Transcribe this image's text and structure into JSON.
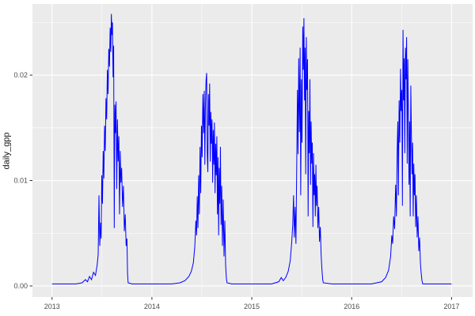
{
  "figure": {
    "background": "#ffffff",
    "panel_bg": "#ebebeb",
    "grid_color": "#ffffff",
    "tick_mark_color": "#333333",
    "tick_label_color": "#4d4d4d",
    "axis_title_color": "#141414"
  },
  "chart_data": {
    "type": "line",
    "title": "",
    "xlabel": "",
    "ylabel": "daily_gpp",
    "legend": "none",
    "grid": true,
    "x_domain": [
      2012.804,
      2017.211
    ],
    "y_domain": [
      -0.00105,
      0.02675
    ],
    "x_ticks": [
      2013,
      2014,
      2015,
      2016,
      2017
    ],
    "x_tick_labels": [
      "2013",
      "2014",
      "2015",
      "2016",
      "2017"
    ],
    "x_minor_ticks": [
      2013.5,
      2014.5,
      2015.5,
      2016.5
    ],
    "y_ticks": [
      0.0,
      0.01,
      0.02
    ],
    "y_tick_labels": [
      "0.00",
      "0.01",
      "0.02"
    ],
    "y_minor_ticks": [
      0.005,
      0.015,
      0.025
    ],
    "series": [
      {
        "name": "daily_gpp",
        "color": "#0000ff",
        "points": [
          [
            2013.0,
            0.0002
          ],
          [
            2013.08,
            0.0002
          ],
          [
            2013.16,
            0.0002
          ],
          [
            2013.24,
            0.0002
          ],
          [
            2013.3,
            0.0003
          ],
          [
            2013.335,
            0.0006
          ],
          [
            2013.355,
            0.0004
          ],
          [
            2013.375,
            0.0009
          ],
          [
            2013.395,
            0.0006
          ],
          [
            2013.415,
            0.0013
          ],
          [
            2013.435,
            0.001
          ],
          [
            2013.452,
            0.002
          ],
          [
            2013.462,
            0.003
          ],
          [
            2013.47,
            0.0086
          ],
          [
            2013.478,
            0.0038
          ],
          [
            2013.486,
            0.006
          ],
          [
            2013.492,
            0.0045
          ],
          [
            2013.498,
            0.0105
          ],
          [
            2013.505,
            0.0078
          ],
          [
            2013.512,
            0.0128
          ],
          [
            2013.519,
            0.0102
          ],
          [
            2013.526,
            0.0152
          ],
          [
            2013.533,
            0.0128
          ],
          [
            2013.54,
            0.0178
          ],
          [
            2013.547,
            0.0158
          ],
          [
            2013.554,
            0.0205
          ],
          [
            2013.561,
            0.0182
          ],
          [
            2013.568,
            0.0225
          ],
          [
            2013.575,
            0.0208
          ],
          [
            2013.582,
            0.0245
          ],
          [
            2013.588,
            0.0222
          ],
          [
            2013.594,
            0.0258
          ],
          [
            2013.6,
            0.0238
          ],
          [
            2013.605,
            0.025
          ],
          [
            2013.611,
            0.0198
          ],
          [
            2013.617,
            0.0228
          ],
          [
            2013.623,
            0.0055
          ],
          [
            2013.629,
            0.0172
          ],
          [
            2013.635,
            0.0145
          ],
          [
            2013.641,
            0.0175
          ],
          [
            2013.648,
            0.0092
          ],
          [
            2013.655,
            0.0158
          ],
          [
            2013.662,
            0.0118
          ],
          [
            2013.669,
            0.0142
          ],
          [
            2013.676,
            0.0068
          ],
          [
            2013.683,
            0.0128
          ],
          [
            2013.69,
            0.0098
          ],
          [
            2013.697,
            0.0112
          ],
          [
            2013.706,
            0.0075
          ],
          [
            2013.715,
            0.0095
          ],
          [
            2013.724,
            0.0052
          ],
          [
            2013.733,
            0.0068
          ],
          [
            2013.742,
            0.0038
          ],
          [
            2013.75,
            0.0045
          ],
          [
            2013.756,
            0.0012
          ],
          [
            2013.762,
            0.0003
          ],
          [
            2013.8,
            0.0002
          ],
          [
            2013.9,
            0.0002
          ],
          [
            2014.0,
            0.0002
          ],
          [
            2014.1,
            0.0002
          ],
          [
            2014.2,
            0.0002
          ],
          [
            2014.28,
            0.0003
          ],
          [
            2014.33,
            0.0005
          ],
          [
            2014.37,
            0.0009
          ],
          [
            2014.395,
            0.0014
          ],
          [
            2014.415,
            0.0022
          ],
          [
            2014.43,
            0.0038
          ],
          [
            2014.44,
            0.0062
          ],
          [
            2014.447,
            0.0048
          ],
          [
            2014.454,
            0.0085
          ],
          [
            2014.461,
            0.0055
          ],
          [
            2014.468,
            0.0105
          ],
          [
            2014.475,
            0.0068
          ],
          [
            2014.482,
            0.0132
          ],
          [
            2014.489,
            0.0088
          ],
          [
            2014.496,
            0.0152
          ],
          [
            2014.503,
            0.0122
          ],
          [
            2014.51,
            0.0182
          ],
          [
            2014.517,
            0.0145
          ],
          [
            2014.524,
            0.0185
          ],
          [
            2014.53,
            0.0115
          ],
          [
            2014.536,
            0.0172
          ],
          [
            2014.542,
            0.0195
          ],
          [
            2014.548,
            0.0202
          ],
          [
            2014.554,
            0.0125
          ],
          [
            2014.56,
            0.0108
          ],
          [
            2014.566,
            0.0182
          ],
          [
            2014.572,
            0.0152
          ],
          [
            2014.578,
            0.0192
          ],
          [
            2014.584,
            0.0118
          ],
          [
            2014.59,
            0.0165
          ],
          [
            2014.596,
            0.0135
          ],
          [
            2014.602,
            0.0158
          ],
          [
            2014.608,
            0.0098
          ],
          [
            2014.614,
            0.0148
          ],
          [
            2014.62,
            0.0115
          ],
          [
            2014.626,
            0.0155
          ],
          [
            2014.632,
            0.0088
          ],
          [
            2014.638,
            0.0135
          ],
          [
            2014.644,
            0.0105
          ],
          [
            2014.65,
            0.0142
          ],
          [
            2014.656,
            0.0068
          ],
          [
            2014.662,
            0.0122
          ],
          [
            2014.668,
            0.0048
          ],
          [
            2014.674,
            0.0112
          ],
          [
            2014.68,
            0.0078
          ],
          [
            2014.686,
            0.0132
          ],
          [
            2014.692,
            0.0058
          ],
          [
            2014.699,
            0.0095
          ],
          [
            2014.706,
            0.0038
          ],
          [
            2014.714,
            0.0082
          ],
          [
            2014.722,
            0.0028
          ],
          [
            2014.73,
            0.0062
          ],
          [
            2014.738,
            0.002
          ],
          [
            2014.745,
            0.0008
          ],
          [
            2014.752,
            0.0003
          ],
          [
            2014.8,
            0.0002
          ],
          [
            2014.9,
            0.0002
          ],
          [
            2015.0,
            0.0002
          ],
          [
            2015.1,
            0.0002
          ],
          [
            2015.2,
            0.0002
          ],
          [
            2015.27,
            0.0004
          ],
          [
            2015.295,
            0.0008
          ],
          [
            2015.315,
            0.0005
          ],
          [
            2015.34,
            0.0008
          ],
          [
            2015.365,
            0.0014
          ],
          [
            2015.385,
            0.0024
          ],
          [
            2015.4,
            0.0042
          ],
          [
            2015.41,
            0.0058
          ],
          [
            2015.418,
            0.0086
          ],
          [
            2015.426,
            0.0046
          ],
          [
            2015.434,
            0.0075
          ],
          [
            2015.442,
            0.004
          ],
          [
            2015.45,
            0.0115
          ],
          [
            2015.457,
            0.0186
          ],
          [
            2015.463,
            0.0125
          ],
          [
            2015.47,
            0.0216
          ],
          [
            2015.477,
            0.0146
          ],
          [
            2015.484,
            0.0226
          ],
          [
            2015.49,
            0.0086
          ],
          [
            2015.497,
            0.0196
          ],
          [
            2015.503,
            0.0136
          ],
          [
            2015.51,
            0.0246
          ],
          [
            2015.516,
            0.0205
          ],
          [
            2015.522,
            0.0254
          ],
          [
            2015.528,
            0.0176
          ],
          [
            2015.534,
            0.0226
          ],
          [
            2015.54,
            0.0106
          ],
          [
            2015.546,
            0.0236
          ],
          [
            2015.552,
            0.0186
          ],
          [
            2015.558,
            0.0215
          ],
          [
            2015.564,
            0.0066
          ],
          [
            2015.57,
            0.0166
          ],
          [
            2015.576,
            0.0126
          ],
          [
            2015.582,
            0.0196
          ],
          [
            2015.588,
            0.0096
          ],
          [
            2015.594,
            0.0156
          ],
          [
            2015.6,
            0.0116
          ],
          [
            2015.606,
            0.0136
          ],
          [
            2015.612,
            0.0056
          ],
          [
            2015.618,
            0.0126
          ],
          [
            2015.624,
            0.0086
          ],
          [
            2015.63,
            0.0106
          ],
          [
            2015.636,
            0.0066
          ],
          [
            2015.642,
            0.0115
          ],
          [
            2015.648,
            0.0076
          ],
          [
            2015.654,
            0.0095
          ],
          [
            2015.662,
            0.0055
          ],
          [
            2015.67,
            0.0075
          ],
          [
            2015.678,
            0.0042
          ],
          [
            2015.686,
            0.0056
          ],
          [
            2015.694,
            0.003
          ],
          [
            2015.702,
            0.0016
          ],
          [
            2015.71,
            0.0006
          ],
          [
            2015.716,
            0.0003
          ],
          [
            2015.8,
            0.0002
          ],
          [
            2015.9,
            0.0002
          ],
          [
            2016.0,
            0.0002
          ],
          [
            2016.1,
            0.0002
          ],
          [
            2016.2,
            0.0002
          ],
          [
            2016.3,
            0.0004
          ],
          [
            2016.34,
            0.0008
          ],
          [
            2016.37,
            0.0015
          ],
          [
            2016.39,
            0.0028
          ],
          [
            2016.402,
            0.0048
          ],
          [
            2016.41,
            0.004
          ],
          [
            2016.42,
            0.0066
          ],
          [
            2016.43,
            0.0054
          ],
          [
            2016.44,
            0.0096
          ],
          [
            2016.448,
            0.0066
          ],
          [
            2016.455,
            0.0126
          ],
          [
            2016.462,
            0.0156
          ],
          [
            2016.468,
            0.0086
          ],
          [
            2016.475,
            0.0176
          ],
          [
            2016.482,
            0.0136
          ],
          [
            2016.489,
            0.0206
          ],
          [
            2016.495,
            0.0166
          ],
          [
            2016.502,
            0.0186
          ],
          [
            2016.508,
            0.0076
          ],
          [
            2016.514,
            0.0243
          ],
          [
            2016.52,
            0.0176
          ],
          [
            2016.526,
            0.0216
          ],
          [
            2016.532,
            0.0126
          ],
          [
            2016.538,
            0.0226
          ],
          [
            2016.544,
            0.0196
          ],
          [
            2016.55,
            0.0236
          ],
          [
            2016.556,
            0.0116
          ],
          [
            2016.562,
            0.0215
          ],
          [
            2016.568,
            0.0166
          ],
          [
            2016.574,
            0.0096
          ],
          [
            2016.58,
            0.0156
          ],
          [
            2016.586,
            0.0066
          ],
          [
            2016.592,
            0.019
          ],
          [
            2016.598,
            0.0146
          ],
          [
            2016.604,
            0.0106
          ],
          [
            2016.61,
            0.0136
          ],
          [
            2016.616,
            0.0066
          ],
          [
            2016.622,
            0.0116
          ],
          [
            2016.628,
            0.0086
          ],
          [
            2016.634,
            0.0106
          ],
          [
            2016.641,
            0.0056
          ],
          [
            2016.648,
            0.0086
          ],
          [
            2016.656,
            0.0046
          ],
          [
            2016.664,
            0.0066
          ],
          [
            2016.672,
            0.0033
          ],
          [
            2016.68,
            0.0046
          ],
          [
            2016.688,
            0.0022
          ],
          [
            2016.696,
            0.0012
          ],
          [
            2016.704,
            0.0005
          ],
          [
            2016.712,
            0.0002
          ],
          [
            2016.8,
            0.0002
          ],
          [
            2016.9,
            0.0002
          ],
          [
            2017.0,
            0.0002
          ]
        ]
      }
    ]
  }
}
